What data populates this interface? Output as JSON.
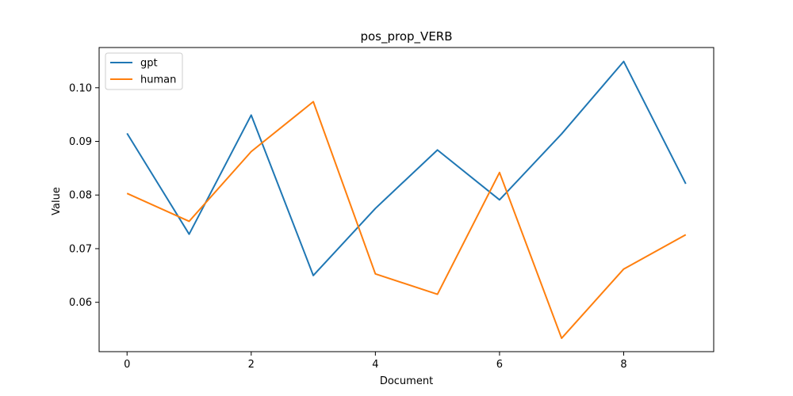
{
  "chart_data": {
    "type": "line",
    "title": "pos_prop_VERB",
    "xlabel": "Document",
    "ylabel": "Value",
    "x": [
      0,
      1,
      2,
      3,
      4,
      5,
      6,
      7,
      8,
      9
    ],
    "xlim": [
      -0.45,
      9.45
    ],
    "ylim": [
      0.0508,
      0.1075
    ],
    "xticks": [
      0,
      2,
      4,
      6,
      8
    ],
    "yticks": [
      0.06,
      0.07,
      0.08,
      0.09,
      0.1
    ],
    "ytick_labels": [
      "0.06",
      "0.07",
      "0.08",
      "0.09",
      "0.10"
    ],
    "grid": false,
    "legend_position": "upper-left",
    "series": [
      {
        "name": "gpt",
        "color": "#1f77b4",
        "values": [
          0.0915,
          0.0727,
          0.0949,
          0.065,
          0.0775,
          0.0884,
          0.0791,
          0.0914,
          0.1049,
          0.0821
        ]
      },
      {
        "name": "human",
        "color": "#ff7f0e",
        "values": [
          0.0803,
          0.0751,
          0.0881,
          0.0974,
          0.0653,
          0.0615,
          0.0842,
          0.0533,
          0.0662,
          0.0726
        ]
      }
    ]
  }
}
